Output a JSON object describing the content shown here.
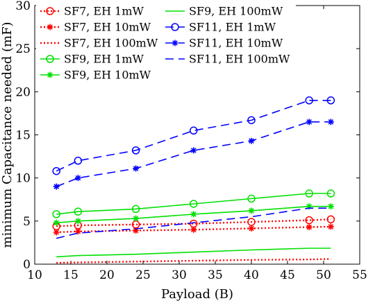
{
  "chart_data": {
    "type": "line",
    "title": "",
    "xlabel": "Payload (B)",
    "ylabel": "minimum Capacitance needed (mF)",
    "xlim": [
      10,
      55
    ],
    "ylim": [
      0,
      30
    ],
    "xticks": [
      10,
      15,
      20,
      25,
      30,
      35,
      40,
      45,
      50,
      55
    ],
    "yticks": [
      0,
      5,
      10,
      15,
      20,
      25,
      30
    ],
    "grid": false,
    "legend_position": "top-left, two columns",
    "x": [
      13,
      16,
      24,
      32,
      40,
      48,
      51
    ],
    "series": [
      {
        "name": "SF7, EH 1mW",
        "color": "#ff0000",
        "line": "dotted",
        "marker": "circle",
        "values": [
          4.4,
          4.5,
          4.6,
          4.7,
          4.9,
          5.1,
          5.2
        ]
      },
      {
        "name": "SF7, EH 10mW",
        "color": "#ff0000",
        "line": "dotted",
        "marker": "star",
        "values": [
          3.7,
          3.8,
          3.9,
          4.0,
          4.15,
          4.3,
          4.35
        ]
      },
      {
        "name": "SF7, EH 100mW",
        "color": "#ff0000",
        "line": "dotted",
        "marker": "none",
        "values": [
          0.15,
          0.2,
          0.3,
          0.4,
          0.5,
          0.55,
          0.6
        ]
      },
      {
        "name": "SF9, EH 1mW",
        "color": "#00e000",
        "line": "solid",
        "marker": "circle",
        "values": [
          5.8,
          6.1,
          6.4,
          7.0,
          7.6,
          8.2,
          8.2
        ]
      },
      {
        "name": "SF9, EH 10mW",
        "color": "#00e000",
        "line": "solid",
        "marker": "star",
        "values": [
          4.8,
          5.0,
          5.3,
          5.8,
          6.2,
          6.7,
          6.7
        ]
      },
      {
        "name": "SF9, EH 100mW",
        "color": "#00e000",
        "line": "solid",
        "marker": "none",
        "values": [
          0.85,
          1.0,
          1.15,
          1.4,
          1.65,
          1.85,
          1.85
        ]
      },
      {
        "name": "SF11, EH 1mW",
        "color": "#0000ff",
        "line": "dashed",
        "marker": "circle",
        "values": [
          10.8,
          12.0,
          13.2,
          15.5,
          16.7,
          19.0,
          19.0
        ]
      },
      {
        "name": "SF11, EH 10mW",
        "color": "#0000ff",
        "line": "dashed",
        "marker": "star",
        "values": [
          9.0,
          10.0,
          11.1,
          13.2,
          14.3,
          16.5,
          16.5
        ]
      },
      {
        "name": "SF11, EH 100mW",
        "color": "#0000ff",
        "line": "dashed",
        "marker": "none",
        "values": [
          3.0,
          3.6,
          4.1,
          4.8,
          5.5,
          6.5,
          6.5
        ]
      }
    ]
  }
}
